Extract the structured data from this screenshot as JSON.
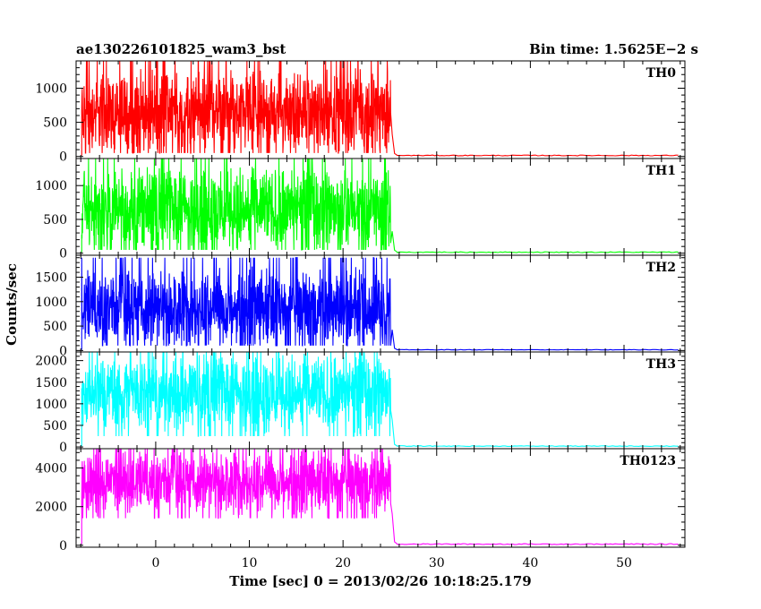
{
  "header": {
    "left_title": "ae130226101825_wam3_bst",
    "right_title": "Bin time: 1.5625E−2 s"
  },
  "chart_data": {
    "type": "line",
    "title": "ae130226101825_wam3_bst",
    "subtitle": "Bin time: 1.5625E−2 s",
    "xlabel": "Time [sec] 0 = 2013/02/26 10:18:25.179",
    "ylabel": "Counts/sec",
    "xlim": [
      -8.5,
      56.5
    ],
    "x_ticks": [
      0,
      10,
      20,
      30,
      40,
      50
    ],
    "x_tick_labels": [
      "0",
      "10",
      "20",
      "30",
      "40",
      "50"
    ],
    "burst_interval": [
      -7.9,
      25.1
    ],
    "grid": false,
    "panels": [
      {
        "name": "TH0",
        "color": "#ff0000",
        "ylim": [
          -30,
          1400
        ],
        "y_ticks": [
          0,
          500,
          1000
        ],
        "y_tick_labels": [
          "0",
          "500",
          "1000"
        ],
        "burst_level": 650,
        "burst_min": 50,
        "burst_max": 1400,
        "background_level": 15
      },
      {
        "name": "TH1",
        "color": "#00ff00",
        "ylim": [
          -30,
          1400
        ],
        "y_ticks": [
          0,
          500,
          1000
        ],
        "y_tick_labels": [
          "0",
          "500",
          "1000"
        ],
        "burst_level": 650,
        "burst_min": 50,
        "burst_max": 1400,
        "background_level": 15
      },
      {
        "name": "TH2",
        "color": "#0000ff",
        "ylim": [
          -30,
          1950
        ],
        "y_ticks": [
          0,
          500,
          1000,
          1500
        ],
        "y_tick_labels": [
          "0",
          "500",
          "1000",
          "1500"
        ],
        "burst_level": 850,
        "burst_min": 100,
        "burst_max": 1900,
        "background_level": 15
      },
      {
        "name": "TH3",
        "color": "#00ffff",
        "ylim": [
          -40,
          2200
        ],
        "y_ticks": [
          0,
          500,
          1000,
          1500,
          2000
        ],
        "y_tick_labels": [
          "0",
          "500",
          "1000",
          "1500",
          "2000"
        ],
        "burst_level": 1250,
        "burst_min": 250,
        "burst_max": 2200,
        "background_level": 20
      },
      {
        "name": "TH0123",
        "color": "#ff00ff",
        "ylim": [
          -100,
          5000
        ],
        "y_ticks": [
          0,
          2000,
          4000
        ],
        "y_tick_labels": [
          "0",
          "2000",
          "4000"
        ],
        "burst_level": 3250,
        "burst_min": 1400,
        "burst_max": 5000,
        "background_level": 60
      }
    ]
  }
}
